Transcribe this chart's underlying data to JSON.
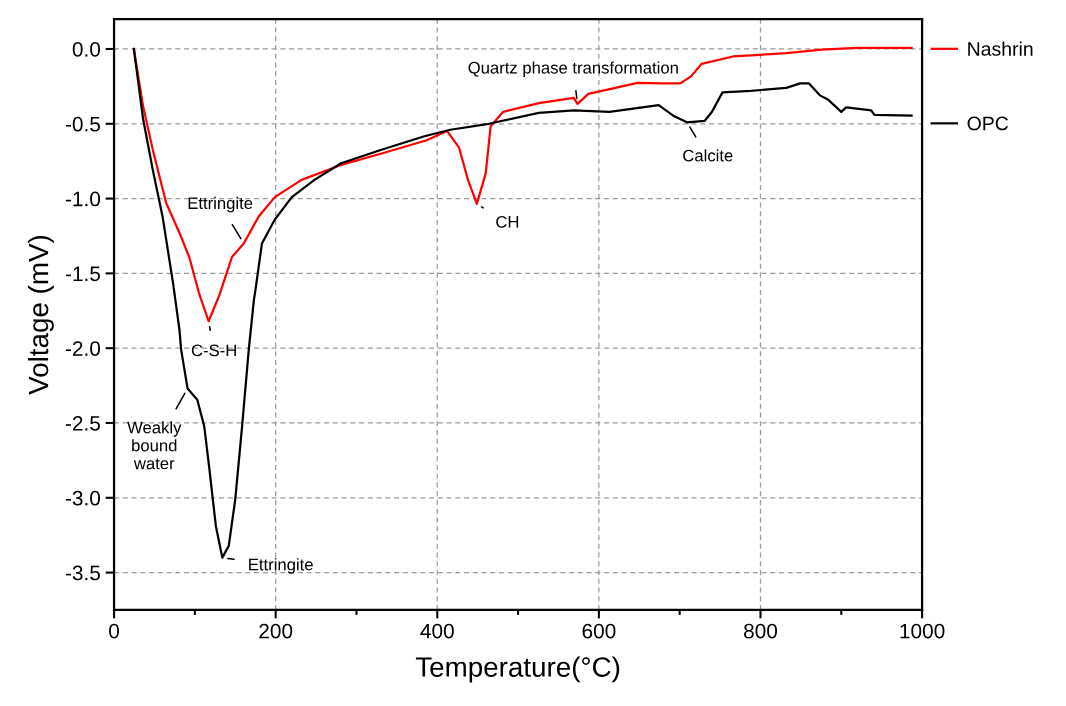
{
  "chart_data": {
    "type": "line",
    "xlabel": "Temperature(°C)",
    "ylabel": "Voltage (mV)",
    "xlim": [
      0,
      1000
    ],
    "ylim": [
      -3.75,
      0.2
    ],
    "xticks": [
      0,
      {
        "value": 100,
        "label": null
      },
      200,
      {
        "value": 300,
        "label": null
      },
      400,
      {
        "value": 500,
        "label": null
      },
      600,
      {
        "value": 700,
        "label": null
      },
      800,
      {
        "value": 900,
        "label": null
      },
      1000
    ],
    "yticks": [
      {
        "value": 0,
        "label": "0.0"
      },
      -0.5,
      {
        "value": -1,
        "label": "-1.0"
      },
      -1.5,
      {
        "value": -2,
        "label": "-2.0"
      },
      -2.5,
      {
        "value": -3,
        "label": "-3.0"
      },
      -3.5
    ],
    "grid": true,
    "legend": "right",
    "line_style": "solid",
    "marker": "none",
    "series": [
      {
        "name": "Nashrin",
        "color": "#ff0000",
        "x": [
          24.5,
          36,
          48,
          64.5,
          81,
          93,
          105,
          117,
          130,
          146,
          160.5,
          179,
          199,
          232,
          281,
          330,
          387,
          412,
          427,
          438,
          449,
          460,
          466,
          481.6,
          525.6,
          569,
          573.5,
          587,
          648,
          679,
          700.6,
          714,
          727,
          766,
          832,
          875.7,
          919,
          987
        ],
        "values": [
          0,
          -0.385,
          -0.675,
          -1.03,
          -1.23,
          -1.39,
          -1.63,
          -1.82,
          -1.65,
          -1.39,
          -1.3,
          -1.12,
          -0.99,
          -0.875,
          -0.775,
          -0.7,
          -0.61,
          -0.548,
          -0.66,
          -0.875,
          -1.035,
          -0.83,
          -0.517,
          -0.42,
          -0.362,
          -0.327,
          -0.367,
          -0.3,
          -0.226,
          -0.23,
          -0.23,
          -0.183,
          -0.1,
          -0.05,
          -0.028,
          -0.004,
          0.007,
          0.007
        ]
      },
      {
        "name": "OPC",
        "color": "#000000",
        "x": [
          24.5,
          36,
          48,
          60,
          73,
          81,
          83,
          91,
          103,
          111.5,
          117.6,
          126,
          134,
          142,
          150,
          158.5,
          166.7,
          173,
          175,
          183,
          199,
          220,
          248,
          281,
          330,
          383,
          416,
          464,
          525.6,
          569,
          613,
          674,
          692,
          709,
          731,
          740,
          753,
          788,
          832,
          849,
          860,
          873.5,
          884,
          900,
          906,
          937,
          941,
          987
        ],
        "values": [
          0,
          -0.47,
          -0.81,
          -1.12,
          -1.565,
          -1.88,
          -2.01,
          -2.27,
          -2.345,
          -2.52,
          -2.79,
          -3.19,
          -3.4,
          -3.32,
          -3.01,
          -2.52,
          -2.01,
          -1.68,
          -1.61,
          -1.3,
          -1.14,
          -0.99,
          -0.875,
          -0.764,
          -0.675,
          -0.585,
          -0.54,
          -0.5,
          -0.427,
          -0.41,
          -0.42,
          -0.375,
          -0.446,
          -0.49,
          -0.48,
          -0.42,
          -0.29,
          -0.28,
          -0.26,
          -0.23,
          -0.23,
          -0.31,
          -0.34,
          -0.42,
          -0.39,
          -0.41,
          -0.44,
          -0.445
        ]
      }
    ],
    "annotations": [
      {
        "text": "Ettringite",
        "x": 160.5,
        "y": -1.3
      },
      {
        "text": "C-S-H",
        "x": 117,
        "y": -1.82
      },
      {
        "text": "Weakly\nbound\nwater",
        "x": 91,
        "y": -2.27
      },
      {
        "text": "Ettringite",
        "x": 134,
        "y": -3.4
      },
      {
        "text": "CH",
        "x": 449,
        "y": -1.035
      },
      {
        "text": "Quartz phase transformation",
        "x": 573.5,
        "y": -0.367
      },
      {
        "text": "Calcite",
        "x": 709,
        "y": -0.49
      }
    ]
  }
}
